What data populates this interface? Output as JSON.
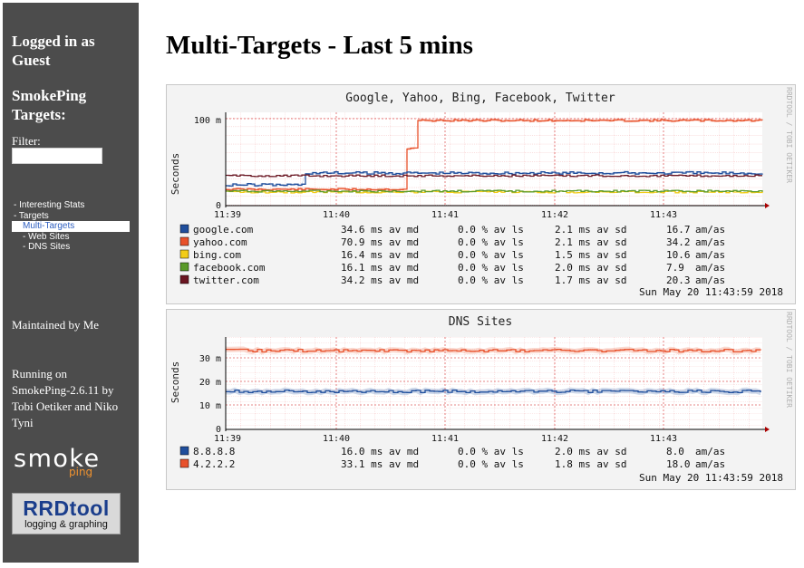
{
  "sidebar": {
    "logged_in": "Logged in as Guest",
    "targets_heading": "SmokePing Targets:",
    "filter_label": "Filter:",
    "filter_value": "",
    "menu": {
      "interesting": "- Interesting Stats",
      "targets": "- Targets",
      "multi": "Multi-Targets",
      "web": "- Web Sites",
      "dns": "- DNS Sites"
    },
    "maintained": "Maintained by Me",
    "running": "Running on SmokePing-2.6.11 by Tobi Oetiker and Niko Tyni",
    "logo_smoke_top": "smoke",
    "logo_smoke_bottom": "ping",
    "logo_rrd_top": "RRDtool",
    "logo_rrd_bottom": "logging & graphing"
  },
  "page": {
    "title": "Multi-Targets - Last 5 mins"
  },
  "graphs": [
    {
      "title": "Google, Yahoo, Bing, Facebook, Twitter",
      "ylabel": "Seconds",
      "side_text": "RRDTOOL / TOBI OETIKER",
      "yticks": [
        "100 m",
        "0"
      ],
      "xticks": [
        "11:39",
        "11:40",
        "11:41",
        "11:42",
        "11:43"
      ],
      "legend": [
        {
          "name": "google.com",
          "color": "#1f4e9c",
          "avg": "34.6 ms av md",
          "loss": "0.0 % av ls",
          "sd": "2.1 ms av sd",
          "amas": "16.7",
          "amas_unit": "am/as"
        },
        {
          "name": "yahoo.com",
          "color": "#e8512b",
          "avg": "70.9 ms av md",
          "loss": "0.0 % av ls",
          "sd": "2.1 ms av sd",
          "amas": "34.2",
          "amas_unit": "am/as"
        },
        {
          "name": "bing.com",
          "color": "#f2cc18",
          "avg": "16.4 ms av md",
          "loss": "0.0 % av ls",
          "sd": "1.5 ms av sd",
          "amas": "10.6",
          "amas_unit": "am/as"
        },
        {
          "name": "facebook.com",
          "color": "#5a9a2a",
          "avg": "16.1 ms av md",
          "loss": "0.0 % av ls",
          "sd": "2.0 ms av sd",
          "amas": "7.9",
          "amas_unit": "am/as"
        },
        {
          "name": "twitter.com",
          "color": "#6a1521",
          "avg": "34.2 ms av md",
          "loss": "0.0 % av ls",
          "sd": "1.7 ms av sd",
          "amas": "20.3",
          "amas_unit": "am/as"
        }
      ],
      "timestamp": "Sun May 20 11:43:59 2018"
    },
    {
      "title": "DNS Sites",
      "ylabel": "Seconds",
      "side_text": "RRDTOOL / TOBI OETIKER",
      "yticks": [
        "30 m",
        "20 m",
        "10 m",
        "0"
      ],
      "xticks": [
        "11:39",
        "11:40",
        "11:41",
        "11:42",
        "11:43"
      ],
      "legend": [
        {
          "name": "8.8.8.8",
          "color": "#1f4e9c",
          "avg": "16.0 ms av md",
          "loss": "0.0 % av ls",
          "sd": "2.0 ms av sd",
          "amas": "8.0",
          "amas_unit": "am/as"
        },
        {
          "name": "4.2.2.2",
          "color": "#e8512b",
          "avg": "33.1 ms av md",
          "loss": "0.0 % av ls",
          "sd": "1.8 ms av sd",
          "amas": "18.0",
          "amas_unit": "am/as"
        }
      ],
      "timestamp": "Sun May 20 11:43:59 2018"
    }
  ]
}
